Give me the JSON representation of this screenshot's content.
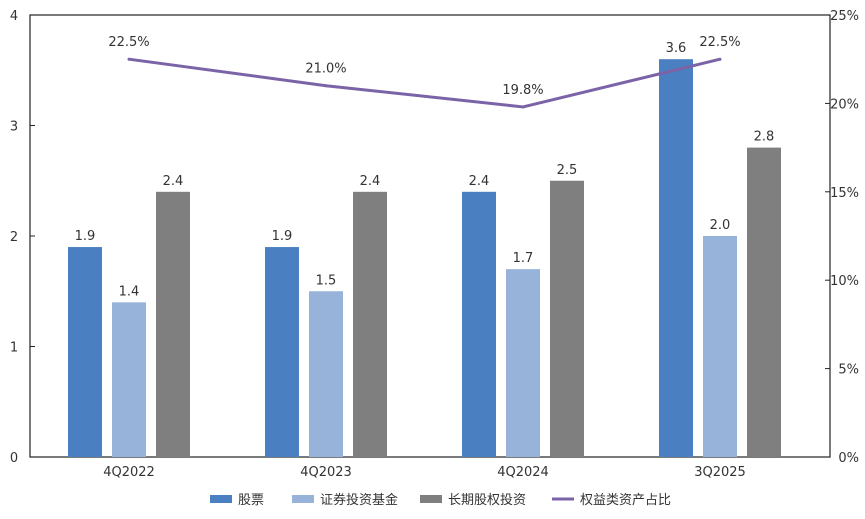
{
  "chart_data": {
    "type": "bar",
    "title": "",
    "categories": [
      "4Q2022",
      "4Q2023",
      "4Q2024",
      "3Q2025"
    ],
    "series": [
      {
        "name": "股票",
        "kind": "bar",
        "axis": "left",
        "color": "#4a7fc1",
        "values": [
          1.9,
          1.9,
          2.4,
          3.6
        ],
        "labels": [
          "1.9",
          "1.9",
          "2.4",
          "3.6"
        ]
      },
      {
        "name": "证券投资基金",
        "kind": "bar",
        "axis": "left",
        "color": "#97b3da",
        "values": [
          1.4,
          1.5,
          1.7,
          2.0
        ],
        "labels": [
          "1.4",
          "1.5",
          "1.7",
          "2.0"
        ]
      },
      {
        "name": "长期股权投资",
        "kind": "bar",
        "axis": "left",
        "color": "#7f7f7f",
        "values": [
          2.4,
          2.4,
          2.5,
          2.8
        ],
        "labels": [
          "2.4",
          "2.4",
          "2.5",
          "2.8"
        ]
      },
      {
        "name": "权益类资产占比",
        "kind": "line",
        "axis": "right",
        "color": "#7b63a8",
        "values": [
          22.5,
          21.0,
          19.8,
          22.5
        ],
        "labels": [
          "22.5%",
          "21.0%",
          "19.8%",
          "22.5%"
        ]
      }
    ],
    "y_left": {
      "min": 0,
      "max": 4,
      "ticks": [
        0,
        1,
        2,
        3,
        4
      ],
      "tick_labels": [
        "0",
        "1",
        "2",
        "3",
        "4"
      ]
    },
    "y_right": {
      "min": 0,
      "max": 25,
      "ticks": [
        0,
        5,
        10,
        15,
        20,
        25
      ],
      "tick_labels": [
        "0%",
        "5%",
        "10%",
        "15%",
        "20%",
        "25%"
      ]
    },
    "xlabel": "",
    "ylabel": "",
    "grid": false,
    "legend_position": "bottom"
  }
}
